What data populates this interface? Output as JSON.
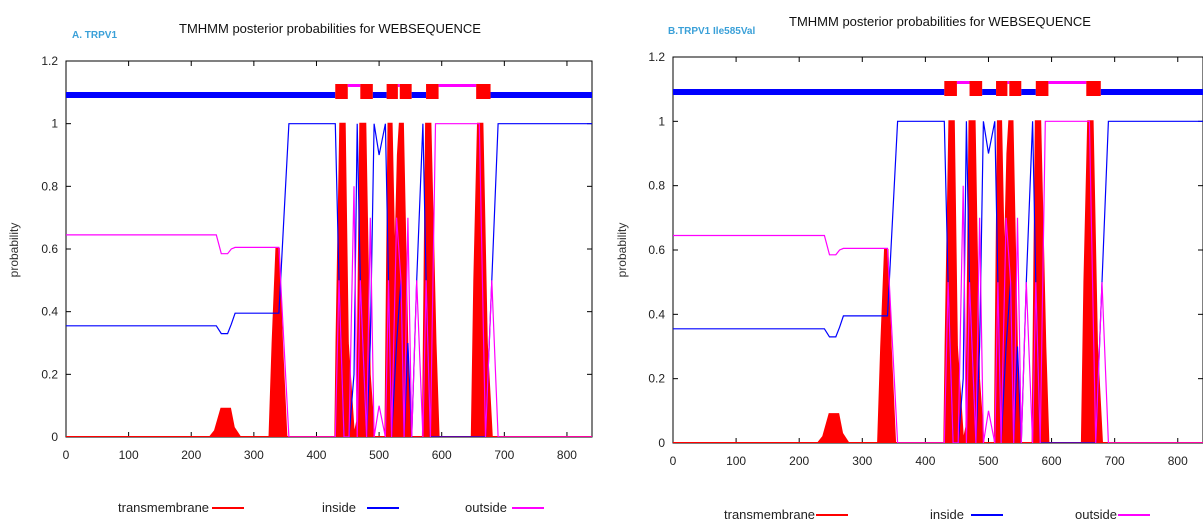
{
  "colors": {
    "transmembrane": "#ff0000",
    "inside": "#0000ff",
    "outside": "#ff00ff",
    "panel_label": "#3aa0d8"
  },
  "chart_data": [
    {
      "type": "line",
      "panel_label": "A. TRPV1",
      "title": "TMHMM posterior probabilities for WEBSEQUENCE",
      "xlabel": "",
      "ylabel": "probability",
      "xlim": [
        0,
        840
      ],
      "ylim": [
        0,
        1.2
      ],
      "xticks": [
        "0",
        "100",
        "200",
        "300",
        "400",
        "500",
        "600",
        "700",
        "800"
      ],
      "yticks": [
        "0",
        "0.2",
        "0.4",
        "0.6",
        "0.8",
        "1",
        "1.2"
      ],
      "grid": false,
      "legend_position": "bottom",
      "series": [
        {
          "name": "transmembrane",
          "style": "filled",
          "x": [
            0,
            215,
            230,
            238,
            248,
            255,
            262,
            268,
            278,
            325,
            330,
            336,
            340,
            345,
            352,
            430,
            432,
            438,
            445,
            450,
            460,
            465,
            470,
            478,
            485,
            492,
            500,
            510,
            515,
            520,
            525,
            530,
            533,
            538,
            545,
            550,
            556,
            570,
            575,
            578,
            582,
            590,
            595,
            648,
            652,
            658,
            665,
            672,
            680,
            840
          ],
          "y": [
            0,
            0,
            0,
            0.02,
            0.09,
            0.09,
            0.09,
            0.03,
            0,
            0,
            0.3,
            0.6,
            0.6,
            0.3,
            0,
            0,
            0.3,
            1,
            1,
            0.3,
            0,
            0.05,
            1,
            1,
            0.2,
            0,
            0,
            0,
            1,
            1,
            0.5,
            0.9,
            1,
            1,
            0.3,
            0,
            0,
            0,
            1,
            1,
            1,
            0.3,
            0,
            0,
            0.5,
            1,
            1,
            0.3,
            0,
            0
          ]
        },
        {
          "name": "inside",
          "style": "line",
          "x": [
            0,
            240,
            248,
            258,
            264,
            270,
            340,
            348,
            356,
            430,
            436,
            444,
            452,
            460,
            465,
            470,
            480,
            486,
            492,
            500,
            510,
            515,
            520,
            528,
            535,
            540,
            546,
            552,
            560,
            570,
            575,
            582,
            590,
            600,
            640,
            650,
            660,
            670,
            680,
            690,
            840
          ],
          "y": [
            0.355,
            0.355,
            0.33,
            0.33,
            0.36,
            0.395,
            0.395,
            0.7,
            1,
            1,
            0.5,
            0,
            0,
            0.2,
            1,
            0.5,
            0,
            0.3,
            1,
            0.9,
            1,
            0.5,
            0,
            0.3,
            0.5,
            0,
            0.3,
            0,
            0.5,
            1,
            0.5,
            0,
            0,
            0,
            0,
            0,
            0,
            0,
            0.5,
            1,
            1
          ]
        },
        {
          "name": "outside",
          "style": "line",
          "x": [
            0,
            240,
            248,
            258,
            264,
            270,
            340,
            348,
            356,
            430,
            436,
            444,
            452,
            460,
            465,
            470,
            480,
            486,
            492,
            500,
            510,
            515,
            520,
            528,
            535,
            540,
            546,
            552,
            560,
            570,
            575,
            582,
            590,
            600,
            640,
            650,
            660,
            670,
            680,
            690,
            840
          ],
          "y": [
            0.645,
            0.645,
            0.585,
            0.585,
            0.6,
            0.605,
            0.605,
            0.3,
            0,
            0,
            0.5,
            0,
            0,
            0.8,
            0,
            0.5,
            0,
            0.7,
            0,
            0.1,
            0,
            0.5,
            0,
            0.7,
            0.5,
            0,
            0.7,
            0,
            0.5,
            0,
            0.5,
            0,
            1,
            1,
            1,
            1,
            1,
            0,
            0.5,
            0,
            0
          ]
        }
      ],
      "topology_bar": [
        {
          "type": "inside",
          "from": 0,
          "to": 430
        },
        {
          "type": "transmembrane",
          "from": 430,
          "to": 450
        },
        {
          "type": "outside",
          "from": 450,
          "to": 470
        },
        {
          "type": "transmembrane",
          "from": 470,
          "to": 490
        },
        {
          "type": "inside",
          "from": 490,
          "to": 512
        },
        {
          "type": "transmembrane",
          "from": 512,
          "to": 530
        },
        {
          "type": "outside",
          "from": 530,
          "to": 533
        },
        {
          "type": "transmembrane",
          "from": 533,
          "to": 552
        },
        {
          "type": "inside",
          "from": 552,
          "to": 575
        },
        {
          "type": "transmembrane",
          "from": 575,
          "to": 595
        },
        {
          "type": "outside",
          "from": 595,
          "to": 655
        },
        {
          "type": "transmembrane",
          "from": 655,
          "to": 678
        },
        {
          "type": "inside",
          "from": 678,
          "to": 840
        }
      ]
    },
    {
      "type": "line",
      "panel_label": "B.TRPV1 Ile585Val",
      "title": "TMHMM posterior probabilities for WEBSEQUENCE",
      "xlabel": "",
      "ylabel": "probability",
      "xlim": [
        0,
        840
      ],
      "ylim": [
        0,
        1.2
      ],
      "xticks": [
        "0",
        "100",
        "200",
        "300",
        "400",
        "500",
        "600",
        "700",
        "800"
      ],
      "yticks": [
        "0",
        "0.2",
        "0.4",
        "0.6",
        "0.8",
        "1",
        "1.2"
      ],
      "grid": false,
      "legend_position": "bottom",
      "series": [
        {
          "name": "transmembrane",
          "style": "filled",
          "x": [
            0,
            215,
            230,
            238,
            248,
            255,
            262,
            268,
            278,
            325,
            330,
            336,
            340,
            345,
            352,
            430,
            432,
            438,
            445,
            450,
            460,
            465,
            470,
            478,
            485,
            492,
            500,
            510,
            515,
            520,
            525,
            530,
            533,
            538,
            545,
            550,
            556,
            570,
            575,
            578,
            582,
            590,
            595,
            648,
            652,
            658,
            665,
            672,
            680,
            840
          ],
          "y": [
            0,
            0,
            0,
            0.02,
            0.09,
            0.09,
            0.09,
            0.03,
            0,
            0,
            0.3,
            0.6,
            0.6,
            0.3,
            0,
            0,
            0.3,
            1,
            1,
            0.3,
            0,
            0.05,
            1,
            1,
            0.2,
            0,
            0,
            0,
            1,
            1,
            0.5,
            0.9,
            1,
            1,
            0.3,
            0,
            0,
            0,
            1,
            1,
            1,
            0.3,
            0,
            0,
            0.5,
            1,
            1,
            0.3,
            0,
            0
          ]
        },
        {
          "name": "inside",
          "style": "line",
          "x": [
            0,
            240,
            248,
            258,
            264,
            270,
            340,
            348,
            356,
            430,
            436,
            444,
            452,
            460,
            465,
            470,
            480,
            486,
            492,
            500,
            510,
            515,
            520,
            528,
            535,
            540,
            546,
            552,
            560,
            570,
            575,
            582,
            590,
            600,
            640,
            650,
            660,
            670,
            680,
            690,
            840
          ],
          "y": [
            0.355,
            0.355,
            0.33,
            0.33,
            0.36,
            0.395,
            0.395,
            0.7,
            1,
            1,
            0.5,
            0,
            0,
            0.2,
            1,
            0.5,
            0,
            0.3,
            1,
            0.9,
            1,
            0.5,
            0,
            0.3,
            0.5,
            0,
            0.3,
            0,
            0.5,
            1,
            0.5,
            0,
            0,
            0,
            0,
            0,
            0,
            0,
            0.5,
            1,
            1
          ]
        },
        {
          "name": "outside",
          "style": "line",
          "x": [
            0,
            240,
            248,
            258,
            264,
            270,
            340,
            348,
            356,
            430,
            436,
            444,
            452,
            460,
            465,
            470,
            480,
            486,
            492,
            500,
            510,
            515,
            520,
            528,
            535,
            540,
            546,
            552,
            560,
            570,
            575,
            582,
            590,
            600,
            640,
            650,
            660,
            670,
            680,
            690,
            840
          ],
          "y": [
            0.645,
            0.645,
            0.585,
            0.585,
            0.6,
            0.605,
            0.605,
            0.3,
            0,
            0,
            0.5,
            0,
            0,
            0.8,
            0,
            0.5,
            0,
            0.7,
            0,
            0.1,
            0,
            0.5,
            0,
            0.7,
            0.5,
            0,
            0.7,
            0,
            0.5,
            0,
            0.5,
            0,
            1,
            1,
            1,
            1,
            1,
            0,
            0.5,
            0,
            0
          ]
        }
      ],
      "topology_bar": [
        {
          "type": "inside",
          "from": 0,
          "to": 430
        },
        {
          "type": "transmembrane",
          "from": 430,
          "to": 450
        },
        {
          "type": "outside",
          "from": 450,
          "to": 470
        },
        {
          "type": "transmembrane",
          "from": 470,
          "to": 490
        },
        {
          "type": "inside",
          "from": 490,
          "to": 512
        },
        {
          "type": "transmembrane",
          "from": 512,
          "to": 530
        },
        {
          "type": "outside",
          "from": 530,
          "to": 533
        },
        {
          "type": "transmembrane",
          "from": 533,
          "to": 552
        },
        {
          "type": "inside",
          "from": 552,
          "to": 575
        },
        {
          "type": "transmembrane",
          "from": 575,
          "to": 595
        },
        {
          "type": "outside",
          "from": 595,
          "to": 655
        },
        {
          "type": "transmembrane",
          "from": 655,
          "to": 678
        },
        {
          "type": "inside",
          "from": 678,
          "to": 840
        }
      ]
    }
  ]
}
